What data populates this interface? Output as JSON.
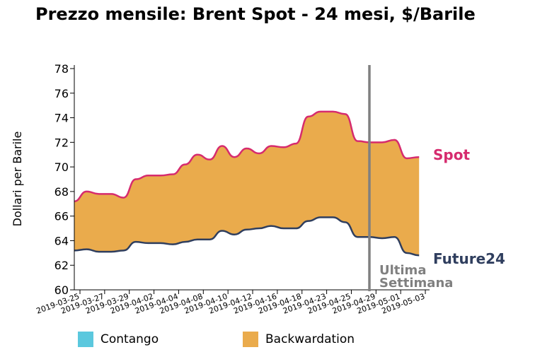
{
  "title": "Prezzo mensile: Brent Spot - 24 mesi, $/Barile",
  "chart_data": {
    "type": "area",
    "title": "Prezzo mensile: Brent Spot - 24 mesi, $/Barile",
    "ylabel": "Dollari per Barile",
    "xlabel": "",
    "ylim": [
      60,
      78
    ],
    "yticks": [
      60,
      62,
      64,
      66,
      68,
      70,
      72,
      74,
      76,
      78
    ],
    "xtick_labels": [
      "2019-03-25",
      "2019-03-27",
      "2019-03-29",
      "2019-04-02",
      "2019-04-04",
      "2019-04-08",
      "2019-04-10",
      "2019-04-12",
      "2019-04-16",
      "2019-04-18",
      "2019-04-23",
      "2019-04-25",
      "2019-04-29",
      "2019-05-01",
      "2019-05-03"
    ],
    "series": [
      {
        "name": "Spot",
        "color": "#d62b6e",
        "values": [
          67.2,
          68.0,
          67.8,
          67.8,
          67.5,
          69.0,
          69.3,
          69.3,
          69.4,
          70.2,
          71.0,
          70.6,
          71.7,
          70.8,
          71.5,
          71.1,
          71.7,
          71.6,
          71.9,
          74.1,
          74.5,
          74.5,
          74.3,
          72.1,
          72.0,
          72.0,
          72.2,
          70.7,
          70.8
        ]
      },
      {
        "name": "Future24",
        "color": "#2f3e5e",
        "values": [
          63.2,
          63.3,
          63.1,
          63.1,
          63.2,
          63.9,
          63.8,
          63.8,
          63.7,
          63.9,
          64.1,
          64.1,
          64.8,
          64.5,
          64.9,
          65.0,
          65.2,
          65.0,
          65.0,
          65.6,
          65.9,
          65.9,
          65.5,
          64.3,
          64.3,
          64.2,
          64.3,
          63.0,
          62.8
        ]
      }
    ],
    "annotation": {
      "line1": "Ultima",
      "line2": "Settimana",
      "color": "#808080"
    },
    "legend": [
      {
        "label": "Contango",
        "color": "#5bc8de"
      },
      {
        "label": "Backwardation",
        "color": "#eaab4c"
      }
    ],
    "legend_position": "bottom"
  }
}
